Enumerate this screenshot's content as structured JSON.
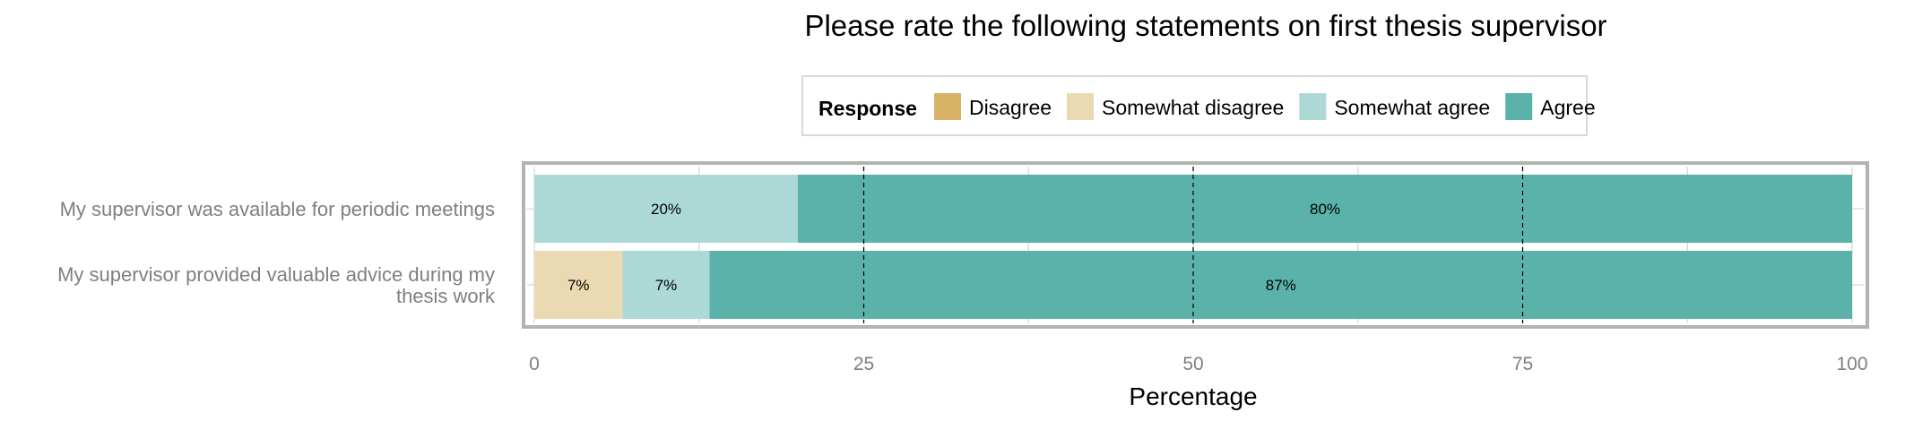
{
  "chart_data": {
    "type": "bar",
    "orientation": "horizontal",
    "stacked": true,
    "title": "Please rate the following statements on first thesis supervisor",
    "xlabel": "Percentage",
    "ylabel": "",
    "xlim": [
      0,
      100
    ],
    "xticks": [
      "0",
      "25",
      "50",
      "75",
      "100"
    ],
    "grid": true,
    "legend_position": "top",
    "legend_title": "Response",
    "categories": [
      "My supervisor was available for periodic meetings",
      "My supervisor provided valuable advice during my thesis work"
    ],
    "series": [
      {
        "name": "Disagree",
        "color": "#D9B365",
        "values": [
          0,
          0
        ],
        "labels": [
          "",
          ""
        ]
      },
      {
        "name": "Somewhat disagree",
        "color": "#EBD9B2",
        "values": [
          0,
          6.7
        ],
        "labels": [
          "",
          "7%"
        ]
      },
      {
        "name": "Somewhat agree",
        "color": "#ACD9D6",
        "values": [
          20,
          6.6
        ],
        "labels": [
          "20%",
          "7%"
        ]
      },
      {
        "name": "Agree",
        "color": "#5AB2AB",
        "values": [
          80,
          86.7
        ],
        "labels": [
          "80%",
          "87%"
        ]
      }
    ]
  }
}
